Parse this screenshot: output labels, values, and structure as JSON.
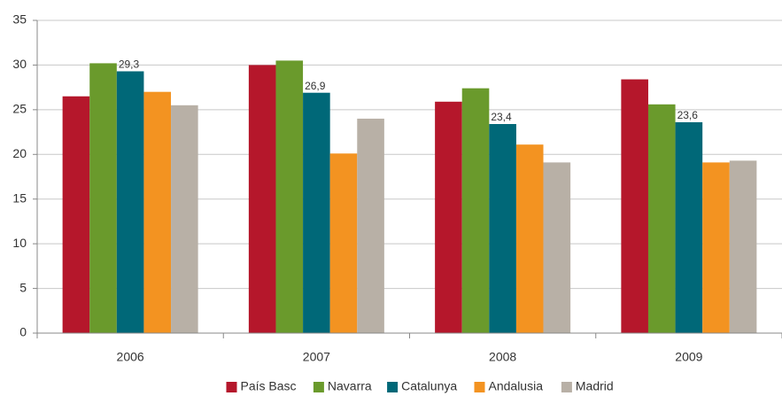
{
  "chart_data": {
    "type": "bar",
    "categories": [
      "2006",
      "2007",
      "2008",
      "2009"
    ],
    "series": [
      {
        "name": "País Basc",
        "color": "#b5172b",
        "values": [
          26.5,
          30.0,
          25.9,
          28.4
        ]
      },
      {
        "name": "Navarra",
        "color": "#6a9a2c",
        "values": [
          30.2,
          30.5,
          27.4,
          25.6
        ]
      },
      {
        "name": "Catalunya",
        "color": "#006878",
        "values": [
          29.3,
          26.9,
          23.4,
          23.6
        ],
        "value_labels": [
          "29,3",
          "26,9",
          "23,4",
          "23,6"
        ]
      },
      {
        "name": "Andalusia",
        "color": "#f39321",
        "values": [
          27.0,
          20.1,
          21.1,
          19.1
        ]
      },
      {
        "name": "Madrid",
        "color": "#b8b0a6",
        "values": [
          25.5,
          24.0,
          19.1,
          19.3
        ]
      }
    ],
    "ylim": [
      0,
      35
    ],
    "yticks": [
      0,
      5,
      10,
      15,
      20,
      25,
      30,
      35
    ],
    "grid": true,
    "legend": "bottom"
  }
}
